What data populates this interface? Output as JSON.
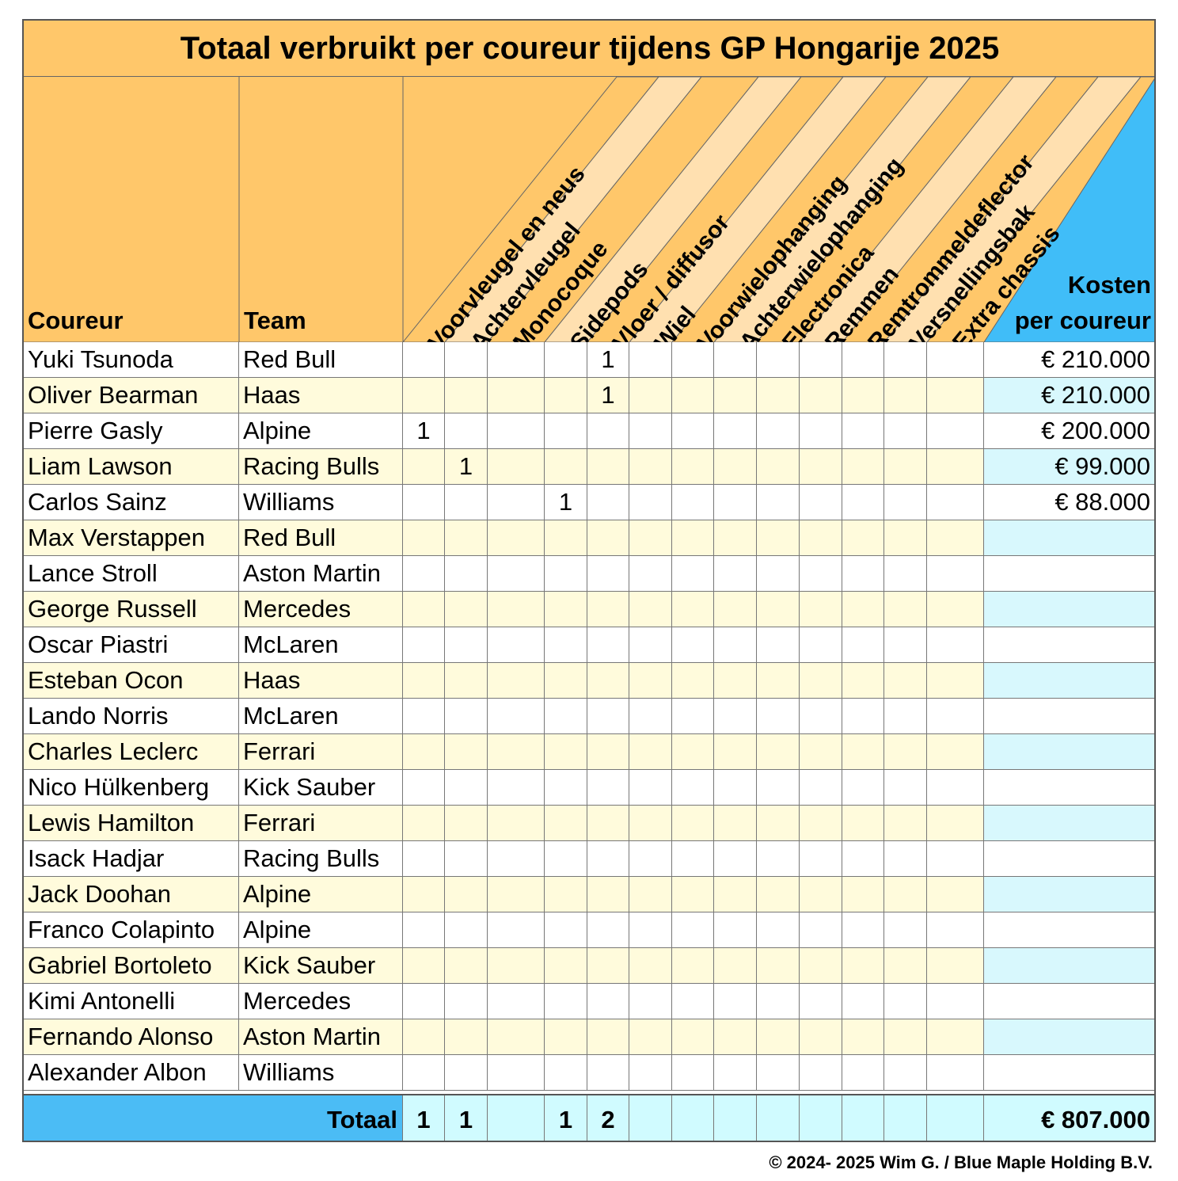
{
  "title": "Totaal verbruikt per coureur tijdens GP Hongarije 2025",
  "headers": {
    "driver": "Coureur",
    "team": "Team",
    "cost_line1": "Kosten",
    "cost_line2": "per coureur",
    "parts": [
      "Voorvleugel en neus",
      "Achtervleugel",
      "Monocoque",
      "Sidepods",
      "Vloer / diffusor",
      "Wiel",
      "Voorwielophanging",
      "Achterwielophanging",
      "Electronica",
      "Remmen",
      "Remtrommeldeflector",
      "Versnellingsbak",
      "Extra chassis"
    ]
  },
  "rows": [
    {
      "driver": "Yuki Tsunoda",
      "team": "Red Bull",
      "counts": [
        "",
        "",
        "",
        "",
        "1",
        "",
        "",
        "",
        "",
        "",
        "",
        "",
        ""
      ],
      "cost": "€ 210.000"
    },
    {
      "driver": "Oliver Bearman",
      "team": "Haas",
      "counts": [
        "",
        "",
        "",
        "",
        "1",
        "",
        "",
        "",
        "",
        "",
        "",
        "",
        ""
      ],
      "cost": "€ 210.000"
    },
    {
      "driver": "Pierre Gasly",
      "team": "Alpine",
      "counts": [
        "1",
        "",
        "",
        "",
        "",
        "",
        "",
        "",
        "",
        "",
        "",
        "",
        ""
      ],
      "cost": "€ 200.000"
    },
    {
      "driver": "Liam Lawson",
      "team": "Racing Bulls",
      "counts": [
        "",
        "1",
        "",
        "",
        "",
        "",
        "",
        "",
        "",
        "",
        "",
        "",
        ""
      ],
      "cost": "€ 99.000"
    },
    {
      "driver": "Carlos Sainz",
      "team": "Williams",
      "counts": [
        "",
        "",
        "",
        "1",
        "",
        "",
        "",
        "",
        "",
        "",
        "",
        "",
        ""
      ],
      "cost": "€ 88.000"
    },
    {
      "driver": "Max Verstappen",
      "team": "Red Bull",
      "counts": [
        "",
        "",
        "",
        "",
        "",
        "",
        "",
        "",
        "",
        "",
        "",
        "",
        ""
      ],
      "cost": ""
    },
    {
      "driver": "Lance Stroll",
      "team": "Aston Martin",
      "counts": [
        "",
        "",
        "",
        "",
        "",
        "",
        "",
        "",
        "",
        "",
        "",
        "",
        ""
      ],
      "cost": ""
    },
    {
      "driver": "George Russell",
      "team": "Mercedes",
      "counts": [
        "",
        "",
        "",
        "",
        "",
        "",
        "",
        "",
        "",
        "",
        "",
        "",
        ""
      ],
      "cost": ""
    },
    {
      "driver": "Oscar Piastri",
      "team": "McLaren",
      "counts": [
        "",
        "",
        "",
        "",
        "",
        "",
        "",
        "",
        "",
        "",
        "",
        "",
        ""
      ],
      "cost": ""
    },
    {
      "driver": "Esteban Ocon",
      "team": "Haas",
      "counts": [
        "",
        "",
        "",
        "",
        "",
        "",
        "",
        "",
        "",
        "",
        "",
        "",
        ""
      ],
      "cost": ""
    },
    {
      "driver": "Lando Norris",
      "team": "McLaren",
      "counts": [
        "",
        "",
        "",
        "",
        "",
        "",
        "",
        "",
        "",
        "",
        "",
        "",
        ""
      ],
      "cost": ""
    },
    {
      "driver": "Charles Leclerc",
      "team": "Ferrari",
      "counts": [
        "",
        "",
        "",
        "",
        "",
        "",
        "",
        "",
        "",
        "",
        "",
        "",
        ""
      ],
      "cost": ""
    },
    {
      "driver": "Nico Hülkenberg",
      "team": "Kick Sauber",
      "counts": [
        "",
        "",
        "",
        "",
        "",
        "",
        "",
        "",
        "",
        "",
        "",
        "",
        ""
      ],
      "cost": ""
    },
    {
      "driver": "Lewis Hamilton",
      "team": "Ferrari",
      "counts": [
        "",
        "",
        "",
        "",
        "",
        "",
        "",
        "",
        "",
        "",
        "",
        "",
        ""
      ],
      "cost": ""
    },
    {
      "driver": "Isack Hadjar",
      "team": "Racing Bulls",
      "counts": [
        "",
        "",
        "",
        "",
        "",
        "",
        "",
        "",
        "",
        "",
        "",
        "",
        ""
      ],
      "cost": ""
    },
    {
      "driver": "Jack Doohan",
      "team": "Alpine",
      "counts": [
        "",
        "",
        "",
        "",
        "",
        "",
        "",
        "",
        "",
        "",
        "",
        "",
        ""
      ],
      "cost": ""
    },
    {
      "driver": "Franco Colapinto",
      "team": "Alpine",
      "counts": [
        "",
        "",
        "",
        "",
        "",
        "",
        "",
        "",
        "",
        "",
        "",
        "",
        ""
      ],
      "cost": ""
    },
    {
      "driver": "Gabriel Bortoleto",
      "team": "Kick Sauber",
      "counts": [
        "",
        "",
        "",
        "",
        "",
        "",
        "",
        "",
        "",
        "",
        "",
        "",
        ""
      ],
      "cost": ""
    },
    {
      "driver": "Kimi Antonelli",
      "team": "Mercedes",
      "counts": [
        "",
        "",
        "",
        "",
        "",
        "",
        "",
        "",
        "",
        "",
        "",
        "",
        ""
      ],
      "cost": ""
    },
    {
      "driver": "Fernando Alonso",
      "team": "Aston Martin",
      "counts": [
        "",
        "",
        "",
        "",
        "",
        "",
        "",
        "",
        "",
        "",
        "",
        "",
        ""
      ],
      "cost": ""
    },
    {
      "driver": "Alexander Albon",
      "team": "Williams",
      "counts": [
        "",
        "",
        "",
        "",
        "",
        "",
        "",
        "",
        "",
        "",
        "",
        "",
        ""
      ],
      "cost": ""
    }
  ],
  "total": {
    "label": "Totaal",
    "counts": [
      "1",
      "1",
      "",
      "1",
      "2",
      "",
      "",
      "",
      "",
      "",
      "",
      "",
      ""
    ],
    "cost": "€ 807.000"
  },
  "footer": "© 2024- 2025 Wim G. / Blue Maple Holding B.V.",
  "colors": {
    "header_orange": "#ffc76a",
    "header_stripe": "#ffe0b0",
    "row_alt": "#fffbdc",
    "cost_alt": "#d8f8fd",
    "total_blue": "#4bbcf5",
    "total_cell": "#d0fbff",
    "kosten_blue": "#40bdf8"
  }
}
